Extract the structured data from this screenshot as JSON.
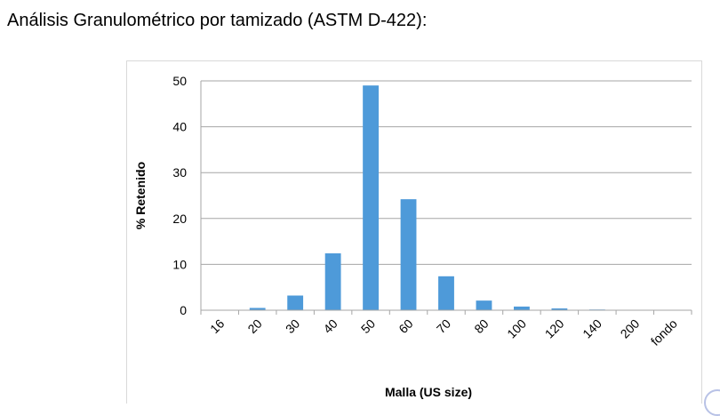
{
  "page": {
    "title": "Análisis Granulométrico por tamizado (ASTM D-422):"
  },
  "chart_data": {
    "type": "bar",
    "title": "",
    "xlabel": "Malla (US size)",
    "ylabel": "% Retenido",
    "categories": [
      "16",
      "20",
      "30",
      "40",
      "50",
      "60",
      "70",
      "80",
      "100",
      "120",
      "140",
      "200",
      "fondo"
    ],
    "values": [
      0,
      0.5,
      3.2,
      12.4,
      49.0,
      24.2,
      7.4,
      2.1,
      0.8,
      0.4,
      0.15,
      0.05,
      0.05
    ],
    "ylim": [
      0,
      50
    ],
    "yticks": [
      0,
      10,
      20,
      30,
      40,
      50
    ],
    "grid": true,
    "legend": "none",
    "bar_color": "#4e9ad9",
    "grid_color": "#a6a6a6"
  }
}
